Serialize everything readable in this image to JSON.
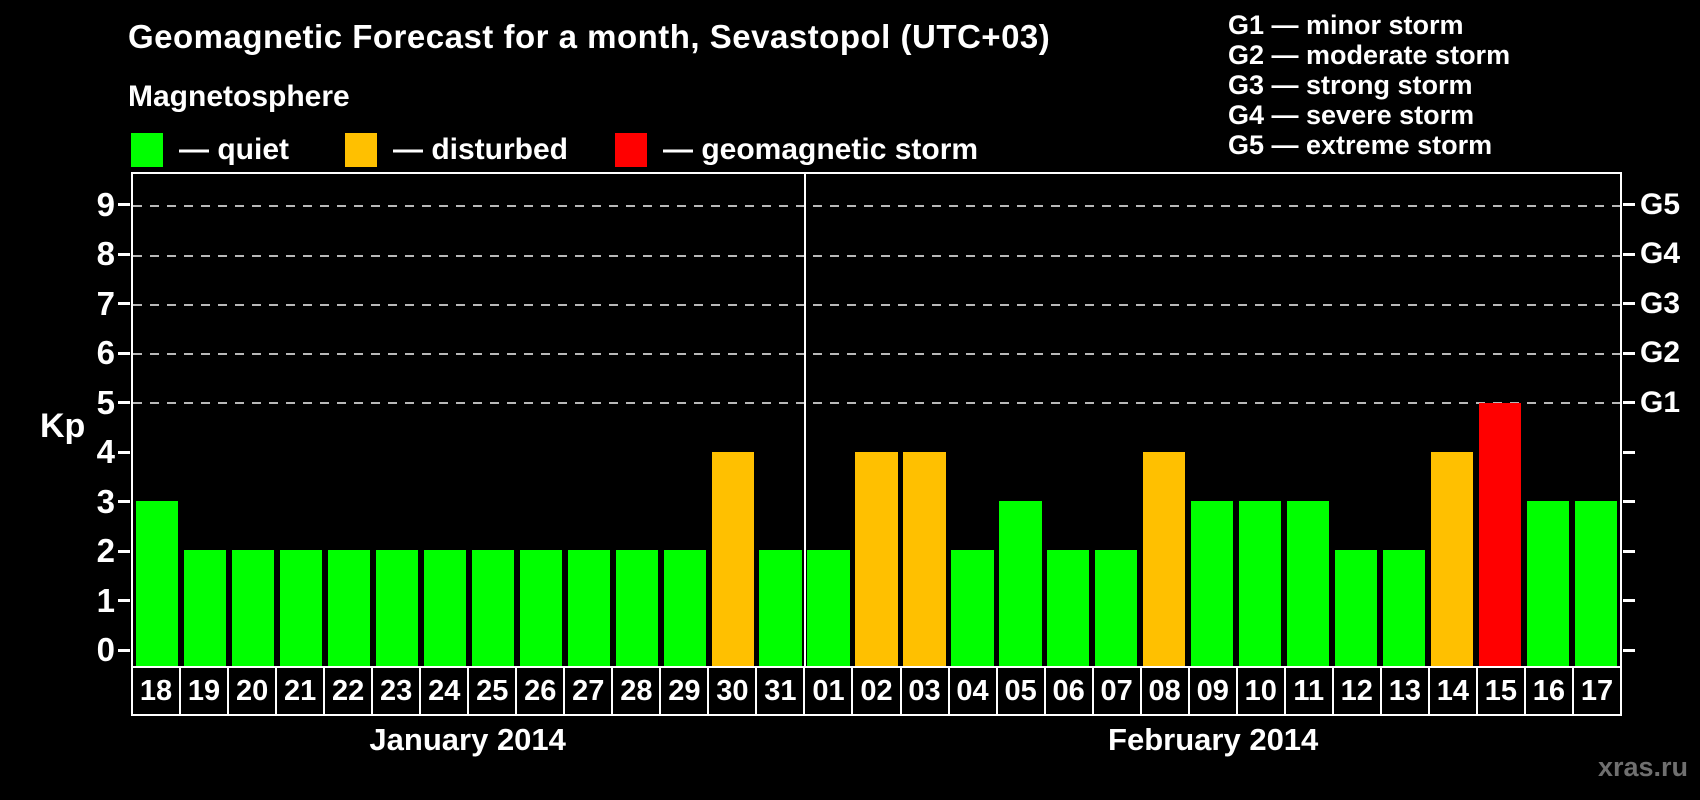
{
  "title": "Geomagnetic Forecast for a month, Sevastopol (UTC+03)",
  "magnetosphere": {
    "heading": "Magnetosphere",
    "items": [
      {
        "name": "quiet",
        "label": "— quiet",
        "color": "#00ff00"
      },
      {
        "name": "disturbed",
        "label": "— disturbed",
        "color": "#ffc000"
      },
      {
        "name": "storm",
        "label": "— geomagnetic storm",
        "color": "#ff0000"
      }
    ],
    "item_x": [
      131,
      345,
      615
    ]
  },
  "g_scale_legend": {
    "lines": [
      "G1 — minor storm",
      "G2 — moderate storm",
      "G3 — strong storm",
      "G4 — severe storm",
      "G5 — extreme storm"
    ]
  },
  "watermark": "xras.ru",
  "chart_data": {
    "type": "bar",
    "title": "Geomagnetic Forecast for a month, Sevastopol (UTC+03)",
    "ylabel": "Kp",
    "ylim": [
      -0.36,
      9.66
    ],
    "y_ticks": [
      0,
      1,
      2,
      3,
      4,
      5,
      6,
      7,
      8,
      9
    ],
    "gridlines": [
      5,
      6,
      7,
      8,
      9
    ],
    "grid_style": "dashed-horizontal",
    "right_axis_labels": [
      {
        "value": 5,
        "label": "G1"
      },
      {
        "value": 6,
        "label": "G2"
      },
      {
        "value": 7,
        "label": "G3"
      },
      {
        "value": 8,
        "label": "G4"
      },
      {
        "value": 9,
        "label": "G5"
      }
    ],
    "status_colors": {
      "quiet": "#00ff00",
      "disturbed": "#ffc000",
      "storm": "#ff0000"
    },
    "months": [
      {
        "label": "January 2014",
        "days": [
          {
            "day": "18",
            "kp": 3,
            "status": "quiet"
          },
          {
            "day": "19",
            "kp": 2,
            "status": "quiet"
          },
          {
            "day": "20",
            "kp": 2,
            "status": "quiet"
          },
          {
            "day": "21",
            "kp": 2,
            "status": "quiet"
          },
          {
            "day": "22",
            "kp": 2,
            "status": "quiet"
          },
          {
            "day": "23",
            "kp": 2,
            "status": "quiet"
          },
          {
            "day": "24",
            "kp": 2,
            "status": "quiet"
          },
          {
            "day": "25",
            "kp": 2,
            "status": "quiet"
          },
          {
            "day": "26",
            "kp": 2,
            "status": "quiet"
          },
          {
            "day": "27",
            "kp": 2,
            "status": "quiet"
          },
          {
            "day": "28",
            "kp": 2,
            "status": "quiet"
          },
          {
            "day": "29",
            "kp": 2,
            "status": "quiet"
          },
          {
            "day": "30",
            "kp": 4,
            "status": "disturbed"
          },
          {
            "day": "31",
            "kp": 2,
            "status": "quiet"
          }
        ]
      },
      {
        "label": "February 2014",
        "days": [
          {
            "day": "01",
            "kp": 2,
            "status": "quiet"
          },
          {
            "day": "02",
            "kp": 4,
            "status": "disturbed"
          },
          {
            "day": "03",
            "kp": 4,
            "status": "disturbed"
          },
          {
            "day": "04",
            "kp": 2,
            "status": "quiet"
          },
          {
            "day": "05",
            "kp": 3,
            "status": "quiet"
          },
          {
            "day": "06",
            "kp": 2,
            "status": "quiet"
          },
          {
            "day": "07",
            "kp": 2,
            "status": "quiet"
          },
          {
            "day": "08",
            "kp": 4,
            "status": "disturbed"
          },
          {
            "day": "09",
            "kp": 3,
            "status": "quiet"
          },
          {
            "day": "10",
            "kp": 3,
            "status": "quiet"
          },
          {
            "day": "11",
            "kp": 3,
            "status": "quiet"
          },
          {
            "day": "12",
            "kp": 2,
            "status": "quiet"
          },
          {
            "day": "13",
            "kp": 2,
            "status": "quiet"
          },
          {
            "day": "14",
            "kp": 4,
            "status": "disturbed"
          },
          {
            "day": "15",
            "kp": 5,
            "status": "storm"
          },
          {
            "day": "16",
            "kp": 3,
            "status": "quiet"
          },
          {
            "day": "17",
            "kp": 3,
            "status": "quiet"
          }
        ]
      }
    ]
  }
}
